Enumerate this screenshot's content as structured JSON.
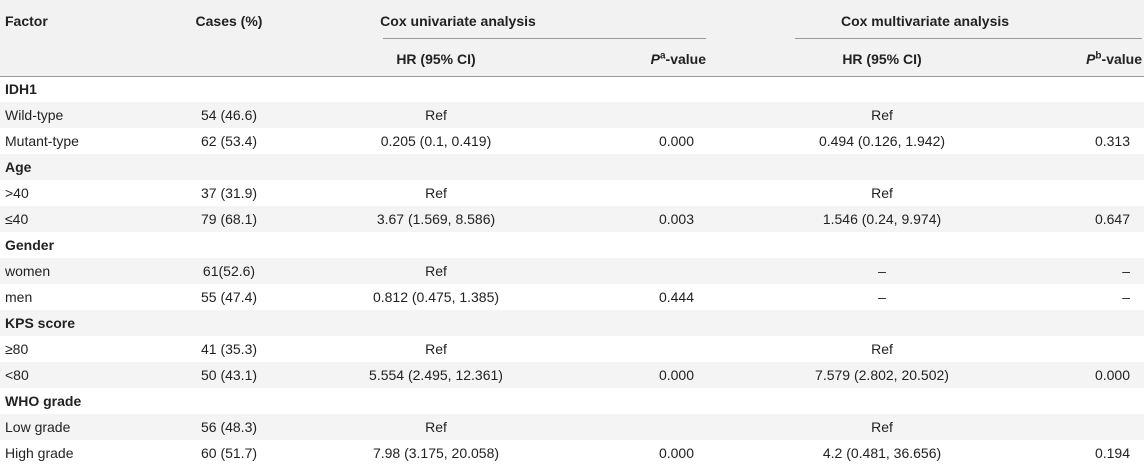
{
  "headers": {
    "factor": "Factor",
    "cases": "Cases (%)",
    "univariate": "Cox univariate analysis",
    "multivariate": "Cox multivariate analysis",
    "hr": "HR (95% CI)",
    "p_letter": "P",
    "p_sup_a": "a",
    "p_sup_b": "b",
    "p_suffix": "-value"
  },
  "rows": [
    {
      "type": "group",
      "label": "IDH1"
    },
    {
      "type": "data",
      "factor": "Wild-type",
      "cases": "54 (46.6)",
      "uni_hr": "Ref",
      "uni_p": "",
      "multi_hr": "Ref",
      "multi_p": ""
    },
    {
      "type": "data",
      "factor": "Mutant-type",
      "cases": "62 (53.4)",
      "uni_hr": "0.205 (0.1, 0.419)",
      "uni_p": "0.000",
      "multi_hr": "0.494 (0.126, 1.942)",
      "multi_p": "0.313"
    },
    {
      "type": "group",
      "label": "Age"
    },
    {
      "type": "data",
      "factor": ">40",
      "cases": "37 (31.9)",
      "uni_hr": "Ref",
      "uni_p": "",
      "multi_hr": "Ref",
      "multi_p": ""
    },
    {
      "type": "data",
      "factor": "≤40",
      "cases": "79 (68.1)",
      "uni_hr": "3.67 (1.569, 8.586)",
      "uni_p": "0.003",
      "multi_hr": "1.546 (0.24, 9.974)",
      "multi_p": "0.647"
    },
    {
      "type": "group",
      "label": "Gender"
    },
    {
      "type": "data",
      "factor": "women",
      "cases": "61(52.6)",
      "uni_hr": "Ref",
      "uni_p": "",
      "multi_hr": "–",
      "multi_p": "–"
    },
    {
      "type": "data",
      "factor": "men",
      "cases": "55 (47.4)",
      "uni_hr": "0.812 (0.475, 1.385)",
      "uni_p": "0.444",
      "multi_hr": "–",
      "multi_p": "–"
    },
    {
      "type": "group",
      "label": "KPS score"
    },
    {
      "type": "data",
      "factor": "≥80",
      "cases": "41 (35.3)",
      "uni_hr": "Ref",
      "uni_p": "",
      "multi_hr": "Ref",
      "multi_p": ""
    },
    {
      "type": "data",
      "factor": "<80",
      "cases": "50 (43.1)",
      "uni_hr": "5.554 (2.495, 12.361)",
      "uni_p": "0.000",
      "multi_hr": "7.579 (2.802, 20.502)",
      "multi_p": "0.000"
    },
    {
      "type": "group",
      "label": "WHO grade"
    },
    {
      "type": "data",
      "factor": "Low grade",
      "cases": "56 (48.3)",
      "uni_hr": "Ref",
      "uni_p": "",
      "multi_hr": "Ref",
      "multi_p": ""
    },
    {
      "type": "data",
      "factor": "High grade",
      "cases": "60 (51.7)",
      "uni_hr": "7.98 (3.175, 20.058)",
      "uni_p": "0.000",
      "multi_hr": "4.2 (0.481, 36.656)",
      "multi_p": "0.194"
    }
  ]
}
